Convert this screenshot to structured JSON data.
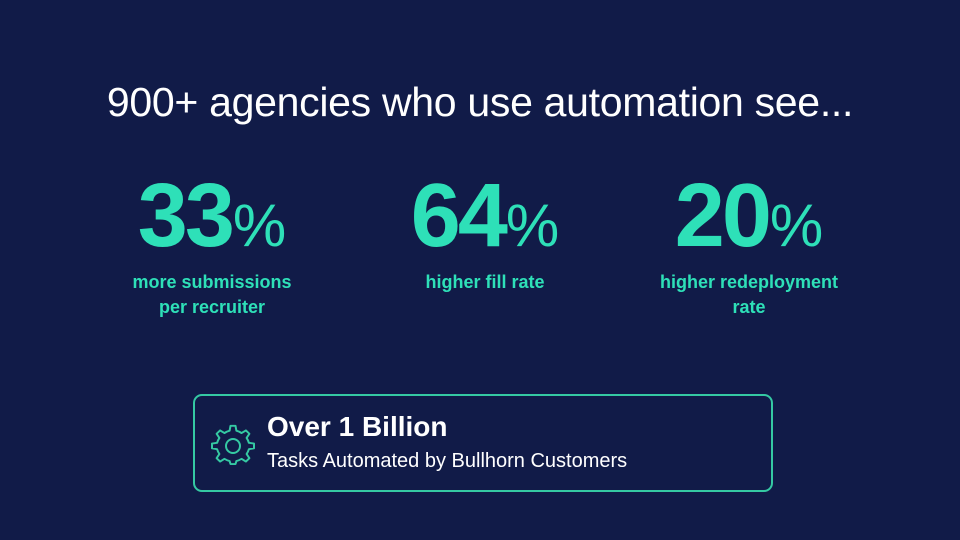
{
  "headline": "900+ agencies who use automation see...",
  "stats": [
    {
      "value": "33",
      "unit": "%",
      "caption_lines": [
        "more submissions",
        "per recruiter"
      ]
    },
    {
      "value": "64",
      "unit": "%",
      "caption_lines": [
        "higher fill rate"
      ]
    },
    {
      "value": "20",
      "unit": "%",
      "caption_lines": [
        "higher redeployment",
        "rate"
      ]
    }
  ],
  "callout": {
    "icon": "gear-icon",
    "title": "Over 1 Billion",
    "subtitle": "Tasks Automated by Bullhorn Customers"
  },
  "colors": {
    "background": "#111b48",
    "accent": "#2ee0b8",
    "border": "#35c9a3",
    "text": "#ffffff"
  }
}
